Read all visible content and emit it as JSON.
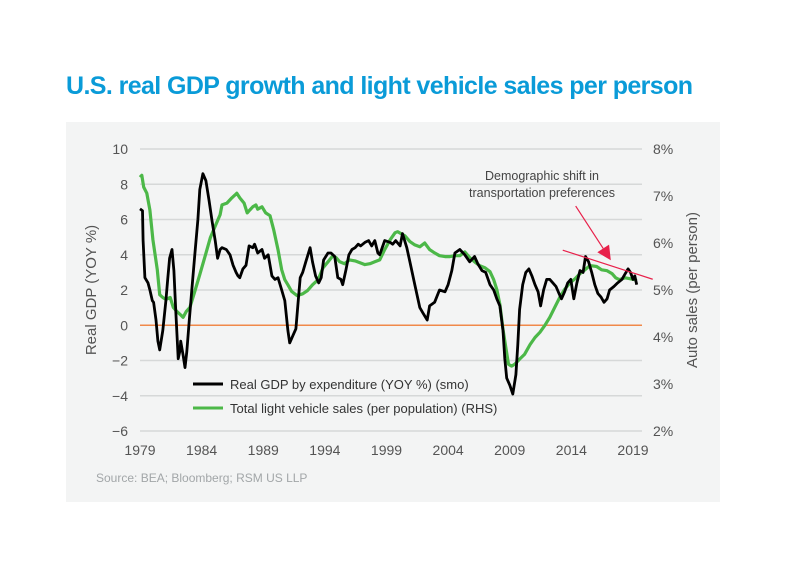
{
  "title": "U.S. real GDP growth and light vehicle sales per person",
  "source": "Source: BEA; Bloomberg; RSM US LLP",
  "colors": {
    "title": "#0a9bd8",
    "gdp_line": "#000000",
    "auto_line": "#4cb848",
    "zero_line": "#f0894a",
    "annotation": "#e8204a",
    "grid": "#d6d8d8"
  },
  "chart_data": {
    "type": "line",
    "title": "U.S. real GDP growth and light vehicle sales per person",
    "xlabel": "",
    "ylabel": "Real GDP (YOY %)",
    "ylabel_right": "Auto sales (per person)",
    "xlim": [
      1979,
      2019
    ],
    "ylim": [
      -6,
      10
    ],
    "ylim_right": [
      2,
      8
    ],
    "x_ticks": [
      "1979",
      "1984",
      "1989",
      "1994",
      "1999",
      "2004",
      "2009",
      "2014",
      "2019"
    ],
    "y_ticks": [
      "10",
      "8",
      "6",
      "4",
      "2",
      "0",
      "−2",
      "−4",
      "−6"
    ],
    "y_ticks_right": [
      "8%",
      "7%",
      "6%",
      "5%",
      "4%",
      "3%",
      "2%"
    ],
    "grid": true,
    "legend_position": "bottom-left-inside",
    "series": [
      {
        "name": "Real GDP by expenditure (YOY %) (smo)",
        "axis": "left",
        "points": [
          [
            1979.0,
            6.6
          ],
          [
            1979.2,
            6.5
          ],
          [
            1979.25,
            4.8
          ],
          [
            1979.4,
            2.7
          ],
          [
            1979.65,
            2.4
          ],
          [
            1979.8,
            2.0
          ],
          [
            1980.0,
            1.4
          ],
          [
            1980.1,
            1.3
          ],
          [
            1980.3,
            0.3
          ],
          [
            1980.45,
            -0.9
          ],
          [
            1980.6,
            -1.4
          ],
          [
            1980.85,
            -0.3
          ],
          [
            1981.1,
            1.4
          ],
          [
            1981.25,
            2.6
          ],
          [
            1981.4,
            3.8
          ],
          [
            1981.6,
            4.3
          ],
          [
            1981.75,
            3.1
          ],
          [
            1981.9,
            0.9
          ],
          [
            1982.1,
            -1.9
          ],
          [
            1982.25,
            -1.4
          ],
          [
            1982.3,
            -0.9
          ],
          [
            1982.5,
            -1.7
          ],
          [
            1982.65,
            -2.4
          ],
          [
            1982.8,
            -1.5
          ],
          [
            1983.0,
            0.3
          ],
          [
            1983.2,
            2.0
          ],
          [
            1983.45,
            4.0
          ],
          [
            1983.7,
            6.0
          ],
          [
            1983.85,
            7.7
          ],
          [
            1984.1,
            8.6
          ],
          [
            1984.35,
            8.2
          ],
          [
            1984.6,
            7.1
          ],
          [
            1984.85,
            5.9
          ],
          [
            1985.1,
            4.8
          ],
          [
            1985.3,
            3.8
          ],
          [
            1985.5,
            4.3
          ],
          [
            1985.65,
            4.4
          ],
          [
            1986.0,
            4.3
          ],
          [
            1986.3,
            4.0
          ],
          [
            1986.55,
            3.4
          ],
          [
            1986.8,
            3.0
          ],
          [
            1986.95,
            2.8
          ],
          [
            1987.1,
            2.7
          ],
          [
            1987.35,
            3.2
          ],
          [
            1987.6,
            3.4
          ],
          [
            1987.85,
            4.5
          ],
          [
            1988.15,
            4.4
          ],
          [
            1988.3,
            4.6
          ],
          [
            1988.55,
            4.1
          ],
          [
            1988.9,
            4.3
          ],
          [
            1989.1,
            3.8
          ],
          [
            1989.4,
            4.0
          ],
          [
            1989.7,
            2.8
          ],
          [
            1989.95,
            2.6
          ],
          [
            1990.2,
            2.7
          ],
          [
            1990.5,
            2.0
          ],
          [
            1990.75,
            1.4
          ],
          [
            1991.0,
            -0.3
          ],
          [
            1991.15,
            -1.0
          ],
          [
            1991.4,
            -0.6
          ],
          [
            1991.65,
            -0.2
          ],
          [
            1991.8,
            1.1
          ],
          [
            1992.0,
            2.7
          ],
          [
            1992.2,
            3.0
          ],
          [
            1992.45,
            3.6
          ],
          [
            1992.8,
            4.4
          ],
          [
            1993.0,
            3.6
          ],
          [
            1993.25,
            2.8
          ],
          [
            1993.5,
            2.4
          ],
          [
            1993.7,
            2.7
          ],
          [
            1993.9,
            3.7
          ],
          [
            1994.25,
            4.1
          ],
          [
            1994.5,
            4.1
          ],
          [
            1994.8,
            3.9
          ],
          [
            1995.05,
            2.7
          ],
          [
            1995.3,
            2.6
          ],
          [
            1995.45,
            2.3
          ],
          [
            1995.7,
            3.1
          ],
          [
            1995.95,
            4.0
          ],
          [
            1996.2,
            4.3
          ],
          [
            1996.45,
            4.4
          ],
          [
            1996.7,
            4.6
          ],
          [
            1996.9,
            4.5
          ],
          [
            1997.25,
            4.7
          ],
          [
            1997.55,
            4.8
          ],
          [
            1997.8,
            4.5
          ],
          [
            1998.05,
            4.8
          ],
          [
            1998.3,
            4.1
          ],
          [
            1998.45,
            4.0
          ],
          [
            1998.85,
            4.8
          ],
          [
            1999.3,
            4.7
          ],
          [
            1999.5,
            4.6
          ],
          [
            1999.75,
            4.8
          ],
          [
            2000.1,
            4.5
          ],
          [
            2000.3,
            5.2
          ],
          [
            2000.65,
            4.4
          ],
          [
            2000.9,
            3.6
          ],
          [
            2001.3,
            2.3
          ],
          [
            2001.7,
            1.0
          ],
          [
            2001.95,
            0.7
          ],
          [
            2002.3,
            0.3
          ],
          [
            2002.5,
            1.1
          ],
          [
            2002.9,
            1.3
          ],
          [
            2003.3,
            2.0
          ],
          [
            2003.75,
            1.9
          ],
          [
            2004.0,
            2.3
          ],
          [
            2004.3,
            3.1
          ],
          [
            2004.55,
            4.1
          ],
          [
            2004.95,
            4.3
          ],
          [
            2005.35,
            4.0
          ],
          [
            2005.75,
            3.6
          ],
          [
            2006.15,
            3.9
          ],
          [
            2006.4,
            3.5
          ],
          [
            2006.75,
            3.1
          ],
          [
            2007.05,
            3.0
          ],
          [
            2007.4,
            2.3
          ],
          [
            2007.7,
            2.0
          ],
          [
            2007.95,
            1.5
          ],
          [
            2008.2,
            1.1
          ],
          [
            2008.45,
            -0.3
          ],
          [
            2008.6,
            -1.9
          ],
          [
            2008.75,
            -3.0
          ],
          [
            2009.0,
            -3.4
          ],
          [
            2009.25,
            -3.9
          ],
          [
            2009.5,
            -2.8
          ],
          [
            2009.65,
            -1.1
          ],
          [
            2009.8,
            0.9
          ],
          [
            2010.05,
            2.3
          ],
          [
            2010.3,
            3.0
          ],
          [
            2010.55,
            3.2
          ],
          [
            2010.8,
            2.8
          ],
          [
            2011.05,
            2.3
          ],
          [
            2011.3,
            1.9
          ],
          [
            2011.5,
            1.1
          ],
          [
            2011.75,
            2.0
          ],
          [
            2012.0,
            2.6
          ],
          [
            2012.25,
            2.6
          ],
          [
            2012.5,
            2.4
          ],
          [
            2012.75,
            2.2
          ],
          [
            2013.0,
            1.8
          ],
          [
            2013.2,
            1.5
          ],
          [
            2013.45,
            1.9
          ],
          [
            2013.7,
            2.4
          ],
          [
            2013.95,
            2.6
          ],
          [
            2014.2,
            1.5
          ],
          [
            2014.45,
            2.4
          ],
          [
            2014.7,
            3.1
          ],
          [
            2014.95,
            3.0
          ],
          [
            2015.15,
            3.9
          ],
          [
            2015.4,
            3.6
          ],
          [
            2015.65,
            3.0
          ],
          [
            2015.9,
            2.3
          ],
          [
            2016.15,
            1.8
          ],
          [
            2016.4,
            1.6
          ],
          [
            2016.65,
            1.3
          ],
          [
            2016.9,
            1.5
          ],
          [
            2017.1,
            2.0
          ],
          [
            2017.45,
            2.2
          ],
          [
            2017.75,
            2.4
          ],
          [
            2018.1,
            2.6
          ],
          [
            2018.35,
            2.9
          ],
          [
            2018.6,
            3.2
          ],
          [
            2018.8,
            3.0
          ],
          [
            2019.0,
            2.6
          ],
          [
            2019.15,
            2.8
          ],
          [
            2019.3,
            2.3
          ]
        ]
      },
      {
        "name": "Total light vehicle sales (per population) (RHS)",
        "axis": "right",
        "unit": "%",
        "points": [
          [
            1979.0,
            7.4
          ],
          [
            1979.15,
            7.44
          ],
          [
            1979.3,
            7.19
          ],
          [
            1979.55,
            7.06
          ],
          [
            1979.8,
            6.7
          ],
          [
            1980.05,
            6.07
          ],
          [
            1980.4,
            5.43
          ],
          [
            1980.6,
            4.9
          ],
          [
            1980.85,
            4.84
          ],
          [
            1981.1,
            4.8
          ],
          [
            1981.45,
            4.84
          ],
          [
            1981.7,
            4.63
          ],
          [
            1982.0,
            4.54
          ],
          [
            1982.25,
            4.48
          ],
          [
            1982.5,
            4.42
          ],
          [
            1982.75,
            4.54
          ],
          [
            1983.05,
            4.63
          ],
          [
            1983.45,
            4.97
          ],
          [
            1983.85,
            5.33
          ],
          [
            1984.25,
            5.69
          ],
          [
            1984.7,
            6.11
          ],
          [
            1985.1,
            6.36
          ],
          [
            1985.5,
            6.6
          ],
          [
            1985.65,
            6.81
          ],
          [
            1986.05,
            6.85
          ],
          [
            1986.45,
            6.96
          ],
          [
            1986.7,
            7.02
          ],
          [
            1986.85,
            7.06
          ],
          [
            1987.1,
            6.96
          ],
          [
            1987.45,
            6.85
          ],
          [
            1987.7,
            6.64
          ],
          [
            1987.9,
            6.7
          ],
          [
            1988.15,
            6.77
          ],
          [
            1988.4,
            6.81
          ],
          [
            1988.55,
            6.72
          ],
          [
            1988.9,
            6.77
          ],
          [
            1989.2,
            6.64
          ],
          [
            1989.55,
            6.58
          ],
          [
            1989.85,
            6.28
          ],
          [
            1990.2,
            5.86
          ],
          [
            1990.5,
            5.43
          ],
          [
            1990.75,
            5.22
          ],
          [
            1991.0,
            5.11
          ],
          [
            1991.3,
            4.97
          ],
          [
            1991.75,
            4.88
          ],
          [
            1992.2,
            4.92
          ],
          [
            1992.6,
            4.99
          ],
          [
            1993.0,
            5.11
          ],
          [
            1993.45,
            5.22
          ],
          [
            1993.85,
            5.47
          ],
          [
            1994.25,
            5.6
          ],
          [
            1994.65,
            5.73
          ],
          [
            1994.9,
            5.69
          ],
          [
            1995.2,
            5.6
          ],
          [
            1995.6,
            5.56
          ],
          [
            1996.0,
            5.64
          ],
          [
            1996.45,
            5.62
          ],
          [
            1996.85,
            5.58
          ],
          [
            1997.25,
            5.54
          ],
          [
            1997.65,
            5.56
          ],
          [
            1998.05,
            5.6
          ],
          [
            1998.45,
            5.64
          ],
          [
            1998.85,
            5.86
          ],
          [
            1999.3,
            6.07
          ],
          [
            1999.7,
            6.22
          ],
          [
            1999.9,
            6.24
          ],
          [
            2000.25,
            6.19
          ],
          [
            2000.5,
            6.15
          ],
          [
            2000.9,
            6.03
          ],
          [
            2001.3,
            5.96
          ],
          [
            2001.7,
            5.92
          ],
          [
            2002.1,
            6.0
          ],
          [
            2002.5,
            5.86
          ],
          [
            2002.9,
            5.79
          ],
          [
            2003.3,
            5.73
          ],
          [
            2003.75,
            5.71
          ],
          [
            2004.15,
            5.71
          ],
          [
            2004.55,
            5.73
          ],
          [
            2004.95,
            5.73
          ],
          [
            2005.35,
            5.81
          ],
          [
            2005.75,
            5.69
          ],
          [
            2006.15,
            5.6
          ],
          [
            2006.55,
            5.52
          ],
          [
            2007.0,
            5.47
          ],
          [
            2007.4,
            5.39
          ],
          [
            2007.7,
            5.22
          ],
          [
            2007.95,
            5.01
          ],
          [
            2008.2,
            4.69
          ],
          [
            2008.45,
            4.16
          ],
          [
            2008.7,
            3.74
          ],
          [
            2008.9,
            3.42
          ],
          [
            2009.15,
            3.38
          ],
          [
            2009.4,
            3.42
          ],
          [
            2009.8,
            3.53
          ],
          [
            2010.2,
            3.63
          ],
          [
            2010.65,
            3.84
          ],
          [
            2011.05,
            3.99
          ],
          [
            2011.45,
            4.1
          ],
          [
            2011.85,
            4.25
          ],
          [
            2012.25,
            4.42
          ],
          [
            2012.65,
            4.63
          ],
          [
            2013.05,
            4.84
          ],
          [
            2013.45,
            5.01
          ],
          [
            2013.85,
            5.14
          ],
          [
            2014.3,
            5.24
          ],
          [
            2014.7,
            5.35
          ],
          [
            2015.1,
            5.43
          ],
          [
            2015.5,
            5.52
          ],
          [
            2016.05,
            5.5
          ],
          [
            2016.45,
            5.43
          ],
          [
            2016.9,
            5.41
          ],
          [
            2017.3,
            5.35
          ],
          [
            2017.6,
            5.26
          ],
          [
            2017.9,
            5.22
          ],
          [
            2018.35,
            5.26
          ],
          [
            2018.75,
            5.24
          ],
          [
            2019.15,
            5.22
          ],
          [
            2019.3,
            5.2
          ]
        ]
      }
    ],
    "reference_line": {
      "axis": "left",
      "value": 0
    },
    "annotations": [
      {
        "text_lines": [
          "Demographic shift in",
          "transportation preferences"
        ],
        "trend_line": {
          "from": [
            2013.3,
            4.26
          ],
          "to": [
            2020.6,
            2.61
          ],
          "axis": "left"
        },
        "arrow": {
          "from": [
            2014.35,
            6.76
          ],
          "to": [
            2017.2,
            3.69
          ],
          "axis": "left"
        }
      }
    ]
  }
}
